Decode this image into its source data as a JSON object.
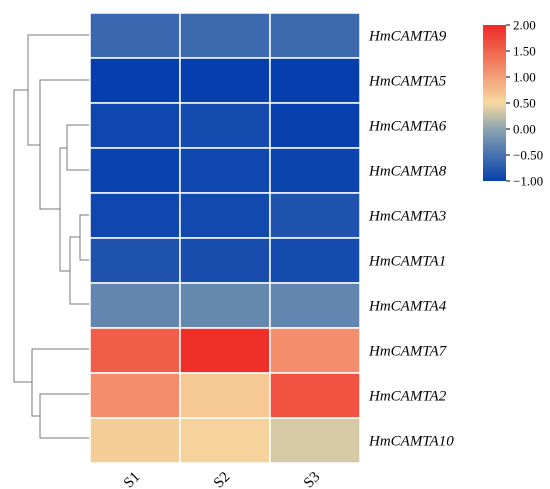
{
  "chart_data": {
    "type": "heatmap",
    "title": "",
    "xlabel": "",
    "ylabel": "",
    "columns": [
      "S1",
      "S2",
      "S3"
    ],
    "rows": [
      "HmCAMTA9",
      "HmCAMTA5",
      "HmCAMTA6",
      "HmCAMTA8",
      "HmCAMTA3",
      "HmCAMTA1",
      "HmCAMTA4",
      "HmCAMTA7",
      "HmCAMTA2",
      "HmCAMTA10"
    ],
    "values": [
      [
        -0.6,
        -0.58,
        -0.58
      ],
      [
        -1.0,
        -1.0,
        -1.0
      ],
      [
        -0.92,
        -0.88,
        -0.98
      ],
      [
        -0.96,
        -0.92,
        -0.95
      ],
      [
        -0.92,
        -0.9,
        -0.8
      ],
      [
        -0.8,
        -0.86,
        -0.88
      ],
      [
        -0.3,
        -0.28,
        -0.3
      ],
      [
        1.55,
        1.95,
        1.15
      ],
      [
        1.15,
        0.65,
        1.65
      ],
      [
        0.6,
        0.55,
        0.35
      ]
    ],
    "colorbar": {
      "min": -1.0,
      "max": 2.0,
      "ticks": [
        "2.00",
        "1.50",
        "1.00",
        "0.50",
        "0.00",
        "−0.50",
        "−1.00"
      ],
      "tick_values": [
        2.0,
        1.5,
        1.0,
        0.5,
        0.0,
        -0.5,
        -1.0
      ],
      "colors": [
        "#053fae",
        "#8aa4b0",
        "#f6d9a0",
        "#ee2a25"
      ]
    },
    "row_dendrogram": true,
    "legend_position": "top-right",
    "grid": true
  }
}
